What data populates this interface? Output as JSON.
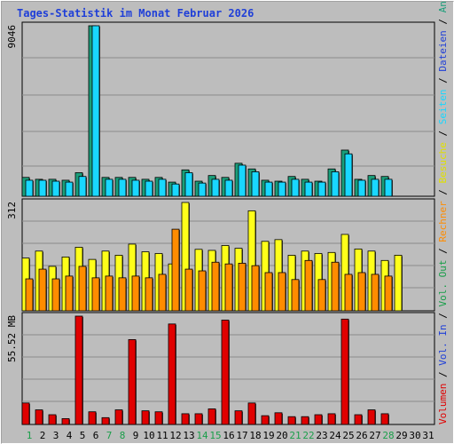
{
  "title": "Tages-Statistik im Monat Februar 2026",
  "colors": {
    "background": "#bdbdbd",
    "grid": "#8c8c8c",
    "panel_border": "#000000",
    "title": "#1f3fd8",
    "anfragen": "#1a9e7a",
    "dateien": "#19d7ff",
    "seiten": "#19d7ff",
    "besuche": "#ffff1a",
    "rechner": "#ff8c00",
    "volumen": "#e00000",
    "weekday_label": "#000000",
    "weekend_label": "#1a9e4a",
    "sep": "#000000"
  },
  "right_label": [
    {
      "text": "Volumen",
      "color": "#e00000"
    },
    {
      "text": " / ",
      "color": "#000000"
    },
    {
      "text": "Vol. In",
      "color": "#1f3fd8"
    },
    {
      "text": " / ",
      "color": "#000000"
    },
    {
      "text": "Vol. Out",
      "color": "#1a9e4a"
    },
    {
      "text": " / ",
      "color": "#000000"
    },
    {
      "text": "Rechner",
      "color": "#ff8c00"
    },
    {
      "text": " / ",
      "color": "#000000"
    },
    {
      "text": "Besuche",
      "color": "#e0e000"
    },
    {
      "text": " / ",
      "color": "#000000"
    },
    {
      "text": "Seiten",
      "color": "#19d7ff"
    },
    {
      "text": " / ",
      "color": "#000000"
    },
    {
      "text": "Dateien",
      "color": "#1f3fd8"
    },
    {
      "text": " / ",
      "color": "#000000"
    },
    {
      "text": "Anfragen",
      "color": "#1a9e7a"
    }
  ],
  "chart_data": [
    {
      "type": "bar",
      "panel": "top",
      "ymax_label": "9046",
      "ylim": [
        0,
        9046
      ],
      "categories": [
        "1",
        "2",
        "3",
        "4",
        "5",
        "6",
        "7",
        "8",
        "9",
        "10",
        "11",
        "12",
        "13",
        "14",
        "15",
        "16",
        "17",
        "18",
        "19",
        "20",
        "21",
        "22",
        "23",
        "24",
        "25",
        "26",
        "27",
        "28",
        "29",
        "30",
        "31"
      ],
      "series": [
        {
          "name": "Anfragen",
          "values": [
            1000,
            900,
            900,
            850,
            1250,
            9046,
            1000,
            1000,
            1000,
            900,
            1000,
            750,
            1400,
            800,
            1100,
            1000,
            1750,
            1450,
            850,
            800,
            1050,
            900,
            800,
            1450,
            2450,
            900,
            1100,
            1050,
            0,
            0,
            0
          ]
        },
        {
          "name": "Dateien",
          "values": [
            850,
            850,
            800,
            750,
            1050,
            9046,
            900,
            900,
            850,
            800,
            900,
            650,
            1250,
            700,
            900,
            850,
            1650,
            1300,
            750,
            750,
            900,
            750,
            750,
            1300,
            2250,
            850,
            900,
            900,
            0,
            0,
            0
          ]
        }
      ]
    },
    {
      "type": "bar",
      "panel": "middle",
      "ymax_label": "312",
      "ylim": [
        0,
        312
      ],
      "categories": [
        "1",
        "2",
        "3",
        "4",
        "5",
        "6",
        "7",
        "8",
        "9",
        "10",
        "11",
        "12",
        "13",
        "14",
        "15",
        "16",
        "17",
        "18",
        "19",
        "20",
        "21",
        "22",
        "23",
        "24",
        "25",
        "26",
        "27",
        "28",
        "29",
        "30",
        "31"
      ],
      "series": [
        {
          "name": "Besuche",
          "values": [
            152,
            172,
            128,
            155,
            183,
            148,
            172,
            160,
            192,
            170,
            165,
            135,
            312,
            177,
            174,
            188,
            180,
            288,
            200,
            205,
            160,
            172,
            165,
            168,
            220,
            178,
            172,
            145,
            160,
            0,
            0
          ]
        },
        {
          "name": "Rechner",
          "values": [
            92,
            120,
            92,
            100,
            128,
            95,
            100,
            95,
            100,
            95,
            105,
            235,
            120,
            115,
            140,
            135,
            137,
            130,
            110,
            110,
            90,
            145,
            90,
            140,
            105,
            110,
            105,
            100,
            0,
            0,
            0
          ]
        }
      ]
    },
    {
      "type": "bar",
      "panel": "bottom",
      "ymax_label": "55.52 MB",
      "ylim": [
        0,
        55.52
      ],
      "categories": [
        "1",
        "2",
        "3",
        "4",
        "5",
        "6",
        "7",
        "8",
        "9",
        "10",
        "11",
        "12",
        "13",
        "14",
        "15",
        "16",
        "17",
        "18",
        "19",
        "20",
        "21",
        "22",
        "23",
        "24",
        "25",
        "26",
        "27",
        "28",
        "29",
        "30",
        "31"
      ],
      "series": [
        {
          "name": "Volumen",
          "values": [
            11,
            7.5,
            5,
            3,
            55.52,
            6.5,
            3.5,
            7.5,
            43.5,
            7,
            6.5,
            51.5,
            5.5,
            5.5,
            8,
            53.5,
            7,
            11,
            4.5,
            6,
            4,
            4,
            5,
            5.5,
            54,
            5,
            7.5,
            5.5,
            0,
            0,
            0
          ]
        }
      ]
    }
  ],
  "day_labels": [
    {
      "d": "1",
      "weekend": true
    },
    {
      "d": "2",
      "weekend": false
    },
    {
      "d": "3",
      "weekend": false
    },
    {
      "d": "4",
      "weekend": false
    },
    {
      "d": "5",
      "weekend": false
    },
    {
      "d": "6",
      "weekend": false
    },
    {
      "d": "7",
      "weekend": true
    },
    {
      "d": "8",
      "weekend": true
    },
    {
      "d": "9",
      "weekend": false
    },
    {
      "d": "10",
      "weekend": false
    },
    {
      "d": "11",
      "weekend": false
    },
    {
      "d": "12",
      "weekend": false
    },
    {
      "d": "13",
      "weekend": false
    },
    {
      "d": "14",
      "weekend": true
    },
    {
      "d": "15",
      "weekend": true
    },
    {
      "d": "16",
      "weekend": false
    },
    {
      "d": "17",
      "weekend": false
    },
    {
      "d": "18",
      "weekend": false
    },
    {
      "d": "19",
      "weekend": false
    },
    {
      "d": "20",
      "weekend": false
    },
    {
      "d": "21",
      "weekend": true
    },
    {
      "d": "22",
      "weekend": true
    },
    {
      "d": "23",
      "weekend": false
    },
    {
      "d": "24",
      "weekend": false
    },
    {
      "d": "25",
      "weekend": false
    },
    {
      "d": "26",
      "weekend": false
    },
    {
      "d": "27",
      "weekend": false
    },
    {
      "d": "28",
      "weekend": true
    },
    {
      "d": "29",
      "weekend": false
    },
    {
      "d": "30",
      "weekend": false
    },
    {
      "d": "31",
      "weekend": false
    }
  ]
}
